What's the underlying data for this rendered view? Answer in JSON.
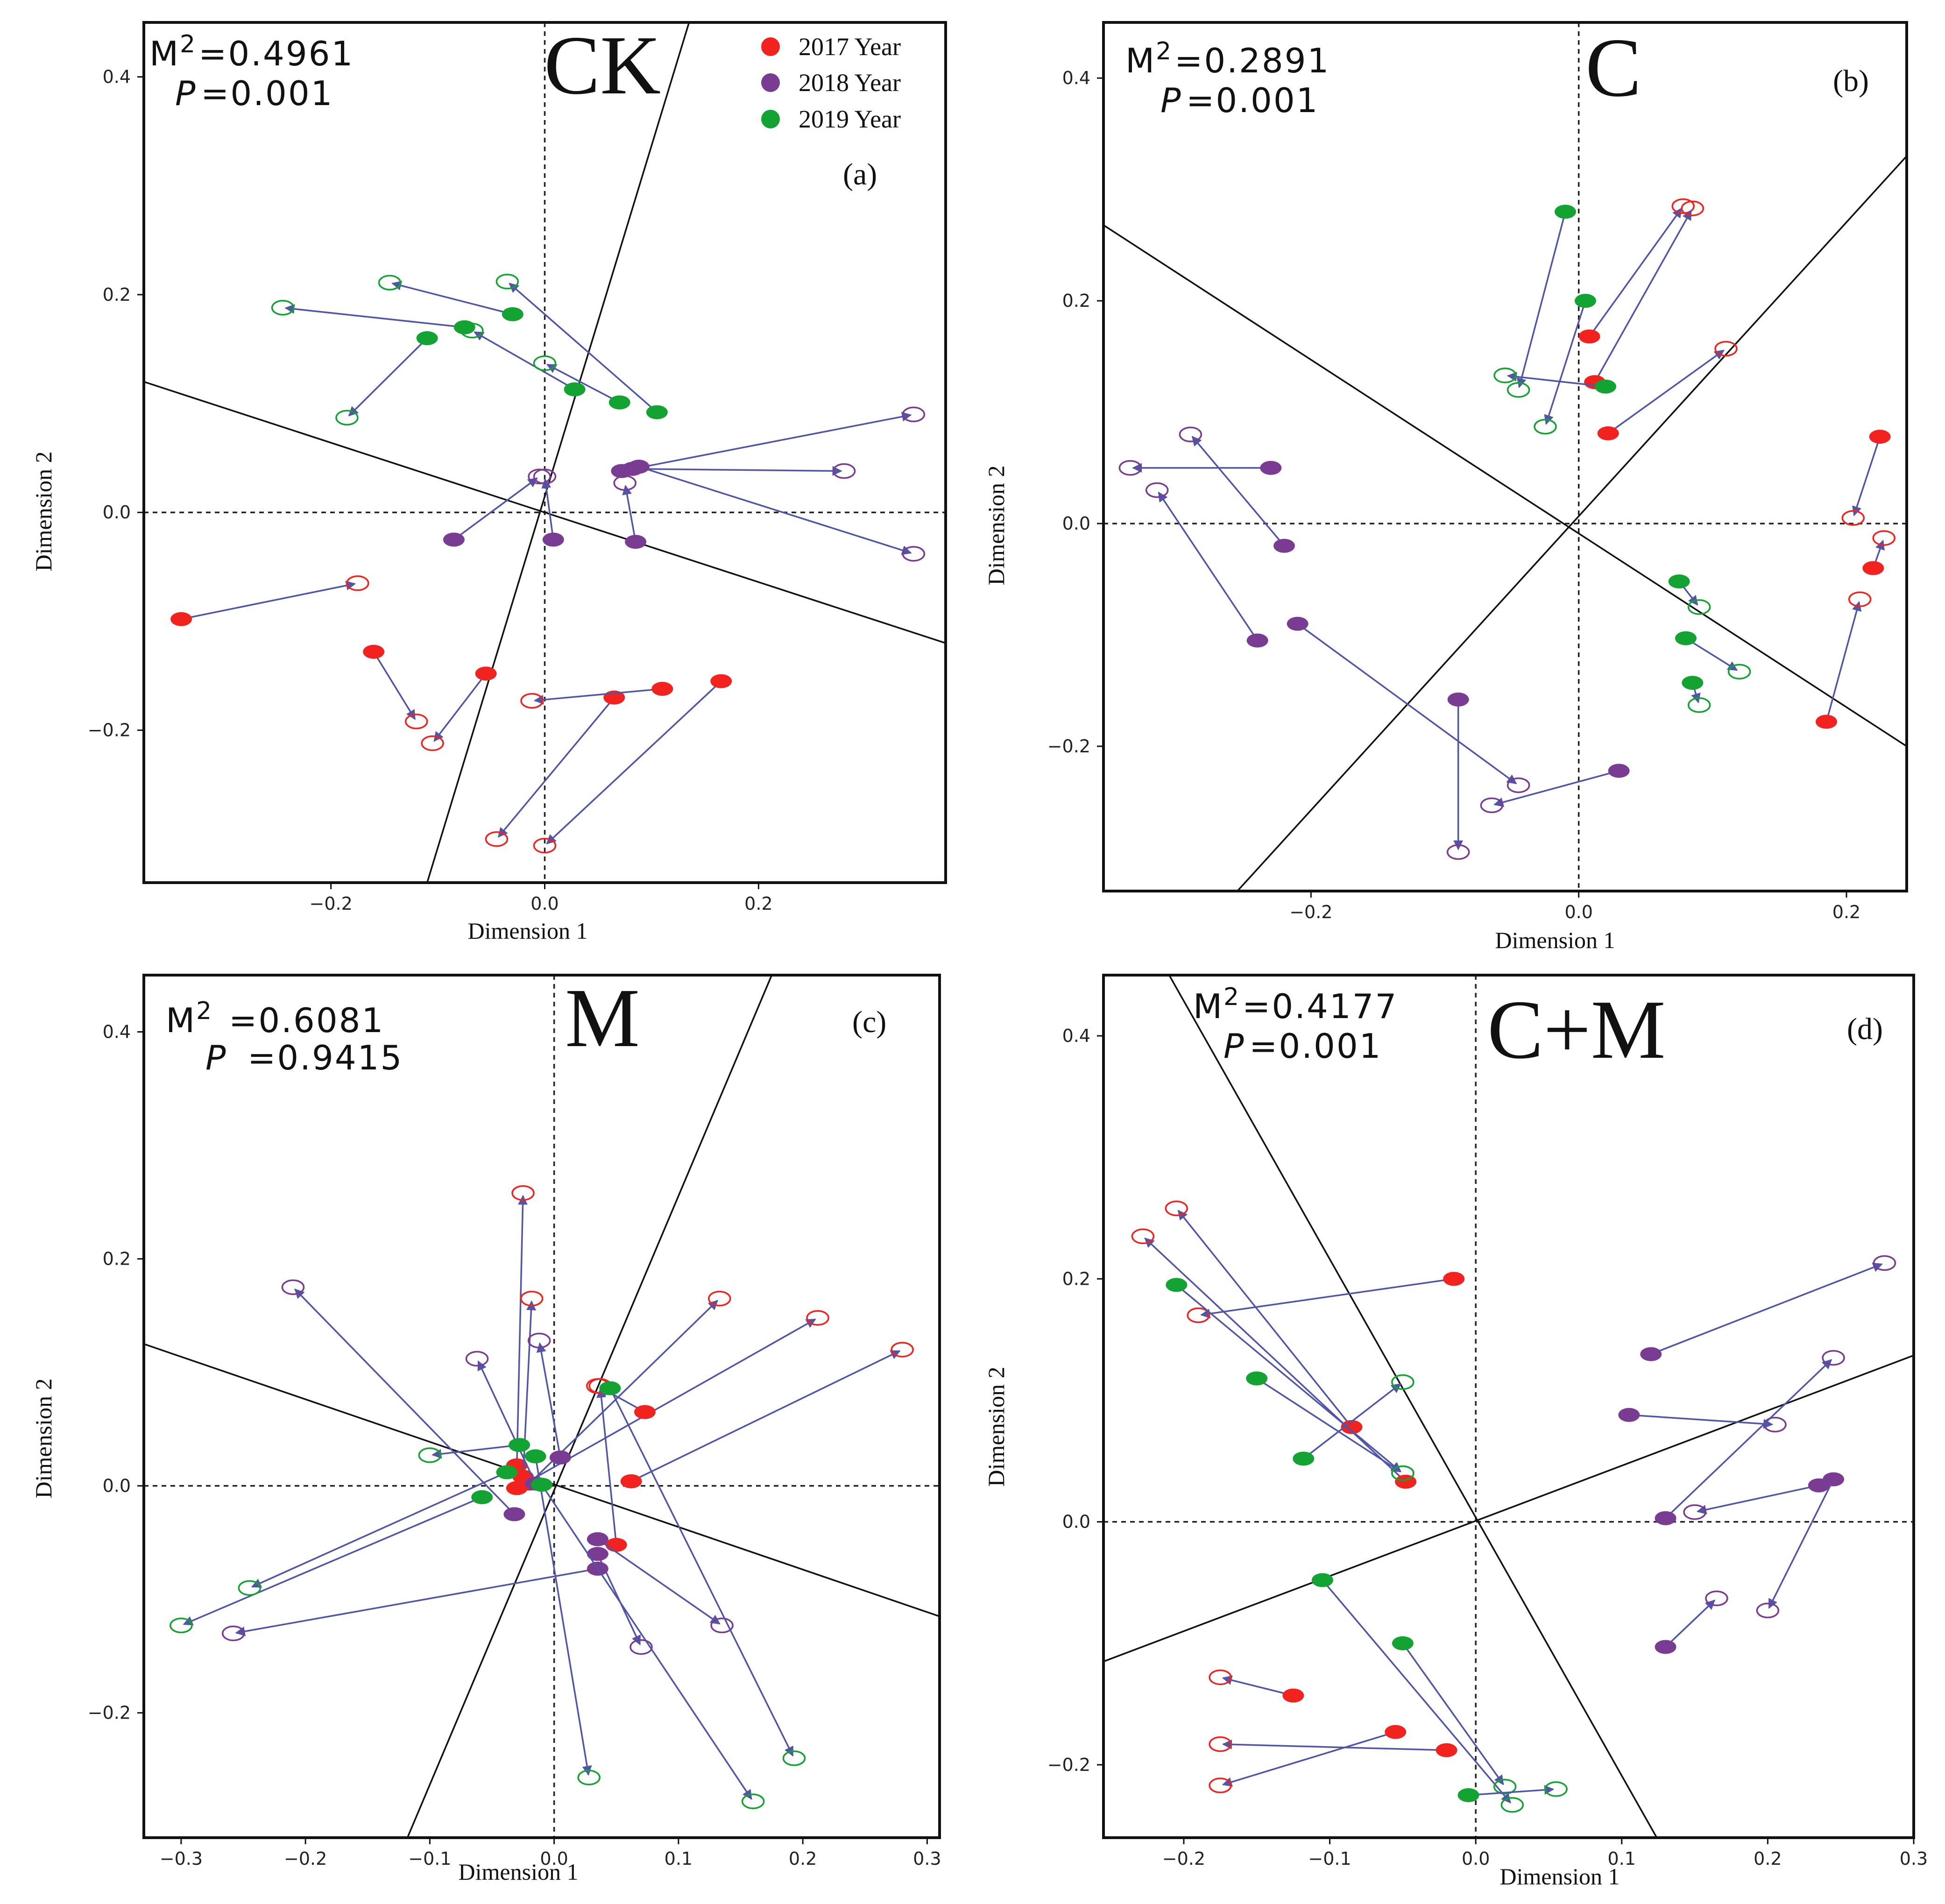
{
  "colors": {
    "y2017": "#f2231f",
    "y2018": "#7a3c93",
    "y2019": "#12a332",
    "arrow": "#5055a8",
    "axis": "#111111"
  },
  "legend": [
    {
      "label": "2017 Year",
      "color_key": "y2017"
    },
    {
      "label": "2018 Year",
      "color_key": "y2018"
    },
    {
      "label": "2019 Year",
      "color_key": "y2019"
    }
  ],
  "chart_data": [
    {
      "type": "scatter",
      "title": "CK",
      "panel_label": "(a)",
      "m2_label": "M",
      "m2_sup": "2",
      "m2_value": "=0.4961",
      "p_label": "P",
      "p_value": "=0.001",
      "xlabel": "Dimension 1",
      "ylabel": "Dimension 2",
      "xlim": [
        -0.375,
        0.375
      ],
      "ylim": [
        -0.34,
        0.45
      ],
      "xticks": [
        -0.2,
        0.0,
        0.2
      ],
      "xtick_labels": [
        "−0.2",
        "0.0",
        "0.2"
      ],
      "yticks": [
        -0.2,
        0.0,
        0.2,
        0.4
      ],
      "ytick_labels": [
        "−0.2",
        "0.0",
        "0.2",
        "0.4"
      ],
      "rotation_lines": [
        [
          -0.11,
          -0.34,
          0.135,
          0.45
        ],
        [
          -0.375,
          0.12,
          0.375,
          -0.12
        ]
      ],
      "pairs": [
        {
          "year": "2017",
          "from": [
            -0.34,
            -0.098
          ],
          "to": [
            -0.175,
            -0.065
          ]
        },
        {
          "year": "2017",
          "from": [
            -0.16,
            -0.128
          ],
          "to": [
            -0.12,
            -0.192
          ]
        },
        {
          "year": "2017",
          "from": [
            -0.055,
            -0.148
          ],
          "to": [
            -0.105,
            -0.212
          ]
        },
        {
          "year": "2017",
          "from": [
            0.065,
            -0.17
          ],
          "to": [
            -0.045,
            -0.3
          ]
        },
        {
          "year": "2017",
          "from": [
            0.11,
            -0.162
          ],
          "to": [
            -0.012,
            -0.173
          ]
        },
        {
          "year": "2017",
          "from": [
            0.165,
            -0.155
          ],
          "to": [
            0.0,
            -0.306
          ]
        },
        {
          "year": "2018",
          "from": [
            -0.085,
            -0.025
          ],
          "to": [
            -0.005,
            0.033
          ]
        },
        {
          "year": "2018",
          "from": [
            0.008,
            -0.025
          ],
          "to": [
            0.0,
            0.033
          ]
        },
        {
          "year": "2018",
          "from": [
            0.085,
            -0.027
          ],
          "to": [
            0.075,
            0.027
          ]
        },
        {
          "year": "2018",
          "from": [
            0.072,
            0.038
          ],
          "to": [
            0.345,
            0.09
          ]
        },
        {
          "year": "2018",
          "from": [
            0.082,
            0.04
          ],
          "to": [
            0.28,
            0.038
          ]
        },
        {
          "year": "2018",
          "from": [
            0.088,
            0.042
          ],
          "to": [
            0.345,
            -0.038
          ]
        },
        {
          "year": "2019",
          "from": [
            -0.11,
            0.16
          ],
          "to": [
            -0.185,
            0.087
          ]
        },
        {
          "year": "2019",
          "from": [
            -0.075,
            0.17
          ],
          "to": [
            -0.245,
            0.188
          ]
        },
        {
          "year": "2019",
          "from": [
            -0.03,
            0.182
          ],
          "to": [
            -0.145,
            0.211
          ]
        },
        {
          "year": "2019",
          "from": [
            0.028,
            0.113
          ],
          "to": [
            -0.068,
            0.167
          ]
        },
        {
          "year": "2019",
          "from": [
            0.07,
            0.101
          ],
          "to": [
            0.0,
            0.137
          ]
        },
        {
          "year": "2019",
          "from": [
            0.105,
            0.092
          ],
          "to": [
            -0.035,
            0.212
          ]
        }
      ]
    },
    {
      "type": "scatter",
      "title": "C",
      "panel_label": "(b)",
      "m2_label": "M",
      "m2_sup": "2",
      "m2_value": "=0.2891",
      "p_label": "P",
      "p_value": "=0.001",
      "xlabel": "Dimension 1",
      "ylabel": "Dimension 2",
      "xlim": [
        -0.355,
        0.245
      ],
      "ylim": [
        -0.33,
        0.45
      ],
      "xticks": [
        -0.2,
        0.0,
        0.2
      ],
      "xtick_labels": [
        "−0.2",
        "0.0",
        "0.2"
      ],
      "yticks": [
        -0.2,
        0.0,
        0.2,
        0.4
      ],
      "ytick_labels": [
        "−0.2",
        "0.0",
        "0.2",
        "0.4"
      ],
      "rotation_lines": [
        [
          -0.355,
          0.268,
          0.245,
          -0.2
        ],
        [
          -0.255,
          -0.33,
          0.245,
          0.33
        ]
      ],
      "pairs": [
        {
          "year": "2017",
          "from": [
            0.008,
            0.168
          ],
          "to": [
            0.078,
            0.285
          ]
        },
        {
          "year": "2017",
          "from": [
            0.012,
            0.127
          ],
          "to": [
            0.085,
            0.283
          ]
        },
        {
          "year": "2017",
          "from": [
            0.022,
            0.081
          ],
          "to": [
            0.11,
            0.157
          ]
        },
        {
          "year": "2017",
          "from": [
            0.225,
            0.078
          ],
          "to": [
            0.205,
            0.005
          ]
        },
        {
          "year": "2017",
          "from": [
            0.22,
            -0.04
          ],
          "to": [
            0.228,
            -0.013
          ]
        },
        {
          "year": "2017",
          "from": [
            0.185,
            -0.178
          ],
          "to": [
            0.21,
            -0.068
          ]
        },
        {
          "year": "2018",
          "from": [
            -0.23,
            0.05
          ],
          "to": [
            -0.335,
            0.05
          ]
        },
        {
          "year": "2018",
          "from": [
            -0.22,
            -0.02
          ],
          "to": [
            -0.29,
            0.08
          ]
        },
        {
          "year": "2018",
          "from": [
            -0.24,
            -0.105
          ],
          "to": [
            -0.315,
            0.03
          ]
        },
        {
          "year": "2018",
          "from": [
            -0.21,
            -0.09
          ],
          "to": [
            -0.045,
            -0.235
          ]
        },
        {
          "year": "2018",
          "from": [
            -0.09,
            -0.158
          ],
          "to": [
            -0.09,
            -0.295
          ]
        },
        {
          "year": "2018",
          "from": [
            0.03,
            -0.222
          ],
          "to": [
            -0.065,
            -0.253
          ]
        },
        {
          "year": "2019",
          "from": [
            -0.01,
            0.28
          ],
          "to": [
            -0.045,
            0.12
          ]
        },
        {
          "year": "2019",
          "from": [
            0.005,
            0.2
          ],
          "to": [
            -0.025,
            0.087
          ]
        },
        {
          "year": "2019",
          "from": [
            0.02,
            0.123
          ],
          "to": [
            -0.055,
            0.133
          ]
        },
        {
          "year": "2019",
          "from": [
            0.075,
            -0.052
          ],
          "to": [
            0.09,
            -0.075
          ]
        },
        {
          "year": "2019",
          "from": [
            0.08,
            -0.103
          ],
          "to": [
            0.12,
            -0.133
          ]
        },
        {
          "year": "2019",
          "from": [
            0.085,
            -0.143
          ],
          "to": [
            0.09,
            -0.163
          ]
        }
      ]
    },
    {
      "type": "scatter",
      "title": "M",
      "panel_label": "(c)",
      "m2_label": "M",
      "m2_sup": "2",
      "m2_value": "=0.6081",
      "p_label": "P",
      "p_value": "=0.9415",
      "xlabel": "Dimension 1",
      "ylabel": "Dimension 2",
      "xlim": [
        -0.33,
        0.31
      ],
      "ylim": [
        -0.31,
        0.45
      ],
      "xticks": [
        -0.3,
        -0.2,
        -0.1,
        0.0,
        0.1,
        0.2,
        0.3
      ],
      "xtick_labels": [
        "−0.3",
        "−0.2",
        "−0.1",
        "0.0",
        "0.1",
        "0.2",
        "0.3"
      ],
      "yticks": [
        -0.2,
        0.0,
        0.2,
        0.4
      ],
      "ytick_labels": [
        "−0.2",
        "0.0",
        "0.2",
        "0.4"
      ],
      "rotation_lines": [
        [
          -0.118,
          -0.31,
          0.175,
          0.45
        ],
        [
          -0.33,
          0.125,
          0.31,
          -0.115
        ]
      ],
      "pairs": [
        {
          "year": "2017",
          "from": [
            -0.03,
            0.018
          ],
          "to": [
            -0.025,
            0.258
          ]
        },
        {
          "year": "2017",
          "from": [
            -0.025,
            0.008
          ],
          "to": [
            -0.018,
            0.165
          ]
        },
        {
          "year": "2017",
          "from": [
            -0.02,
            0.002
          ],
          "to": [
            0.133,
            0.165
          ]
        },
        {
          "year": "2017",
          "from": [
            -0.03,
            -0.002
          ],
          "to": [
            0.212,
            0.148
          ]
        },
        {
          "year": "2017",
          "from": [
            0.073,
            0.065
          ],
          "to": [
            0.035,
            0.088
          ]
        },
        {
          "year": "2017",
          "from": [
            0.062,
            0.004
          ],
          "to": [
            0.28,
            0.12
          ]
        },
        {
          "year": "2017",
          "from": [
            0.05,
            -0.052
          ],
          "to": [
            0.037,
            0.088
          ]
        },
        {
          "year": "2018",
          "from": [
            -0.032,
            -0.025
          ],
          "to": [
            -0.21,
            0.175
          ]
        },
        {
          "year": "2018",
          "from": [
            -0.015,
            0.002
          ],
          "to": [
            -0.062,
            0.112
          ]
        },
        {
          "year": "2018",
          "from": [
            0.005,
            0.025
          ],
          "to": [
            -0.012,
            0.128
          ]
        },
        {
          "year": "2018",
          "from": [
            0.035,
            -0.047
          ],
          "to": [
            0.135,
            -0.123
          ]
        },
        {
          "year": "2018",
          "from": [
            0.035,
            -0.06
          ],
          "to": [
            0.07,
            -0.142
          ]
        },
        {
          "year": "2018",
          "from": [
            0.035,
            -0.073
          ],
          "to": [
            -0.258,
            -0.13
          ]
        },
        {
          "year": "2019",
          "from": [
            -0.058,
            -0.01
          ],
          "to": [
            -0.3,
            -0.123
          ]
        },
        {
          "year": "2019",
          "from": [
            -0.038,
            0.012
          ],
          "to": [
            -0.245,
            -0.09
          ]
        },
        {
          "year": "2019",
          "from": [
            -0.028,
            0.036
          ],
          "to": [
            -0.1,
            0.027
          ]
        },
        {
          "year": "2019",
          "from": [
            -0.015,
            0.026
          ],
          "to": [
            0.028,
            -0.257
          ]
        },
        {
          "year": "2019",
          "from": [
            0.045,
            0.086
          ],
          "to": [
            0.193,
            -0.24
          ]
        },
        {
          "year": "2019",
          "from": [
            -0.01,
            0.001
          ],
          "to": [
            0.16,
            -0.278
          ]
        }
      ]
    },
    {
      "type": "scatter",
      "title": "C+M",
      "panel_label": "(d)",
      "m2_label": "M",
      "m2_sup": "2",
      "m2_value": "=0.4177",
      "p_label": "P",
      "p_value": "=0.001",
      "xlabel": "Dimension 1",
      "ylabel": "Dimension 2",
      "xlim": [
        -0.255,
        0.3
      ],
      "ylim": [
        -0.26,
        0.45
      ],
      "xticks": [
        -0.2,
        -0.1,
        0.0,
        0.1,
        0.2,
        0.3
      ],
      "xtick_labels": [
        "−0.2",
        "−0.1",
        "0.0",
        "0.1",
        "0.2",
        "0.3"
      ],
      "yticks": [
        -0.2,
        0.0,
        0.2,
        0.4
      ],
      "ytick_labels": [
        "−0.2",
        "0.0",
        "0.2",
        "0.4"
      ],
      "rotation_lines": [
        [
          -0.21,
          0.45,
          0.124,
          -0.26
        ],
        [
          -0.255,
          -0.115,
          0.3,
          0.137
        ]
      ],
      "pairs": [
        {
          "year": "2017",
          "from": [
            -0.015,
            0.2
          ],
          "to": [
            -0.19,
            0.17
          ]
        },
        {
          "year": "2017",
          "from": [
            -0.085,
            0.078
          ],
          "to": [
            -0.205,
            0.258
          ]
        },
        {
          "year": "2017",
          "from": [
            -0.048,
            0.033
          ],
          "to": [
            -0.228,
            0.235
          ]
        },
        {
          "year": "2017",
          "from": [
            -0.125,
            -0.143
          ],
          "to": [
            -0.175,
            -0.128
          ]
        },
        {
          "year": "2017",
          "from": [
            -0.055,
            -0.173
          ],
          "to": [
            -0.175,
            -0.217
          ]
        },
        {
          "year": "2017",
          "from": [
            -0.02,
            -0.188
          ],
          "to": [
            -0.175,
            -0.183
          ]
        },
        {
          "year": "2018",
          "from": [
            0.12,
            0.138
          ],
          "to": [
            0.28,
            0.213
          ]
        },
        {
          "year": "2018",
          "from": [
            0.105,
            0.088
          ],
          "to": [
            0.205,
            0.08
          ]
        },
        {
          "year": "2018",
          "from": [
            0.13,
            0.003
          ],
          "to": [
            0.245,
            0.135
          ]
        },
        {
          "year": "2018",
          "from": [
            0.235,
            0.03
          ],
          "to": [
            0.15,
            0.008
          ]
        },
        {
          "year": "2018",
          "from": [
            0.245,
            0.035
          ],
          "to": [
            0.2,
            -0.073
          ]
        },
        {
          "year": "2018",
          "from": [
            0.13,
            -0.103
          ],
          "to": [
            0.165,
            -0.063
          ]
        },
        {
          "year": "2019",
          "from": [
            -0.205,
            0.195
          ],
          "to": [
            -0.05,
            0.04
          ]
        },
        {
          "year": "2019",
          "from": [
            -0.15,
            0.118
          ],
          "to": [
            -0.05,
            0.04
          ]
        },
        {
          "year": "2019",
          "from": [
            -0.118,
            0.052
          ],
          "to": [
            -0.05,
            0.115
          ]
        },
        {
          "year": "2019",
          "from": [
            -0.105,
            -0.048
          ],
          "to": [
            0.025,
            -0.233
          ]
        },
        {
          "year": "2019",
          "from": [
            -0.05,
            -0.1
          ],
          "to": [
            0.02,
            -0.218
          ]
        },
        {
          "year": "2019",
          "from": [
            -0.005,
            -0.225
          ],
          "to": [
            0.055,
            -0.22
          ]
        }
      ]
    }
  ]
}
